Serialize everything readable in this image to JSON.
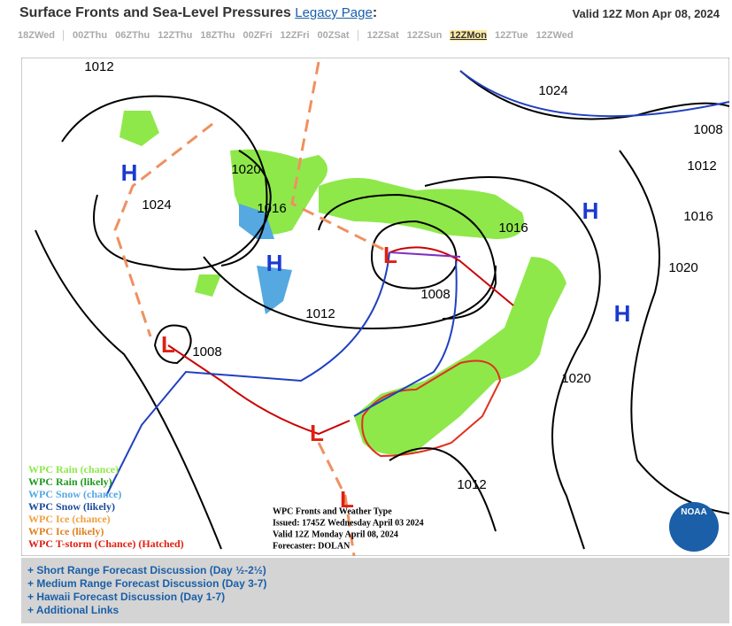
{
  "header": {
    "title": "Surface Fronts and Sea-Level Pressures",
    "link": "Legacy Page",
    "separator": ":",
    "valid": "Valid 12Z Mon Apr 08, 2024"
  },
  "tabs": [
    "18ZWed",
    "00ZThu",
    "06ZThu",
    "12ZThu",
    "18ZThu",
    "00ZFri",
    "12ZFri",
    "00ZSat",
    "12ZSat",
    "12ZSun",
    "12ZMon",
    "12ZTue",
    "12ZWed"
  ],
  "selected_tab": "12ZMon",
  "map": {
    "pressure_labels": [
      "1012",
      "1024",
      "1008",
      "1012",
      "1020",
      "1024",
      "1016",
      "1016",
      "1016",
      "1020",
      "1008",
      "1012",
      "1008",
      "1020",
      "1012"
    ],
    "centers": [
      "H",
      "H",
      "H",
      "H",
      "L",
      "L",
      "L",
      "L"
    ],
    "legend": [
      "WPC Rain (chance)",
      "WPC Rain (likely)",
      "WPC Snow (chance)",
      "WPC Snow (likely)",
      "WPC Ice (chance)",
      "WPC Ice (likely)",
      "WPC T-storm (Chance) (Hatched)"
    ],
    "info": [
      "WPC Fronts and Weather Type",
      "Issued: 1745Z Wednesday April 03 2024",
      "Valid 12Z Monday April 08, 2024",
      "Forecaster: DOLAN"
    ],
    "logo": "NOAA"
  },
  "links": [
    "+ Short Range Forecast Discussion (Day ½-2½)",
    "+ Medium Range Forecast Discussion (Day 3-7)",
    "+ Hawaii Forecast Discussion (Day 1-7)",
    "+ Additional Links"
  ]
}
